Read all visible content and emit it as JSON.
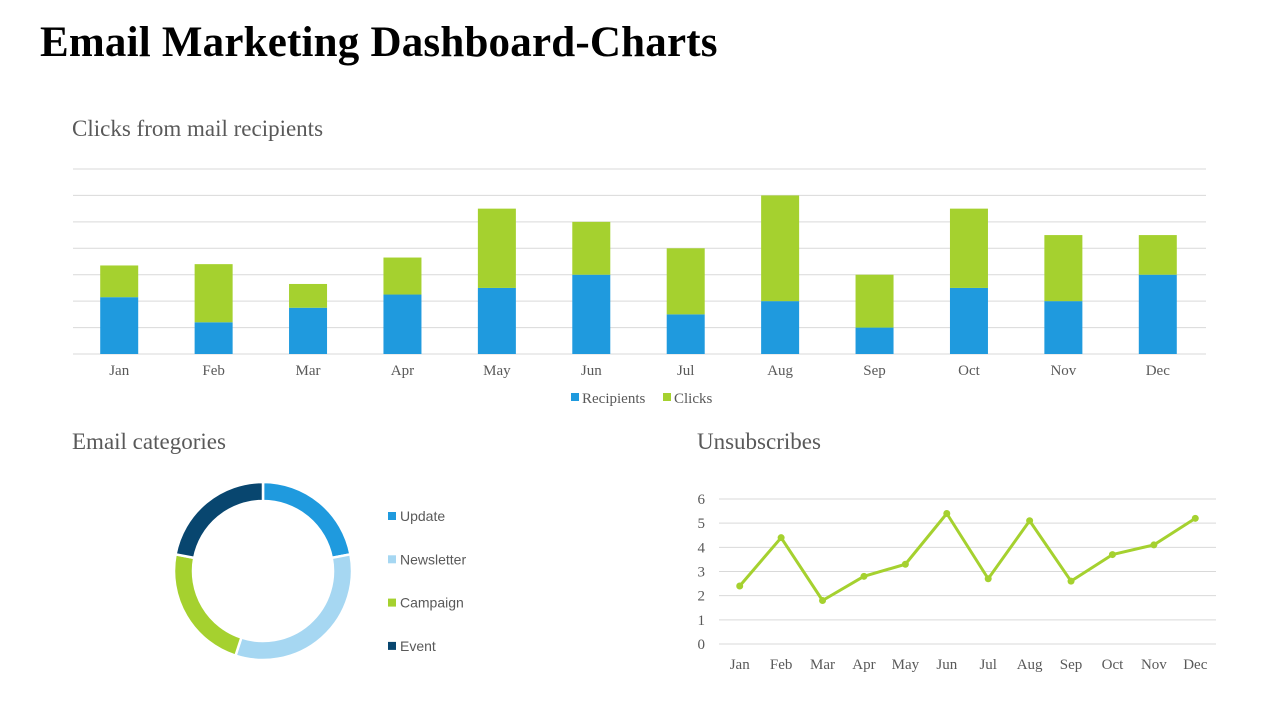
{
  "title": "Email Marketing Dashboard-Charts",
  "colors": {
    "blue": "#1f9ade",
    "green": "#a5d12f",
    "light_blue": "#a6d7f2",
    "navy": "#08466f",
    "grid": "#d9d9d9",
    "text": "#595959"
  },
  "chart_data": [
    {
      "id": "bar",
      "type": "bar",
      "stacked": true,
      "title": "Clicks from mail recipients",
      "categories": [
        "Jan",
        "Feb",
        "Mar",
        "Apr",
        "May",
        "Jun",
        "Jul",
        "Aug",
        "Sep",
        "Oct",
        "Nov",
        "Dec"
      ],
      "series": [
        {
          "name": "Recipients",
          "values": [
            4.3,
            2.4,
            3.5,
            4.5,
            5.0,
            6.0,
            3.0,
            4.0,
            2.0,
            5.0,
            4.0,
            6.0
          ]
        },
        {
          "name": "Clicks",
          "values": [
            2.4,
            4.4,
            1.8,
            2.8,
            6.0,
            4.0,
            5.0,
            8.0,
            4.0,
            6.0,
            5.0,
            3.0
          ]
        }
      ],
      "ylim": [
        0,
        14
      ],
      "grid": true,
      "legend": "bottom"
    },
    {
      "id": "donut",
      "type": "pie",
      "donut": true,
      "title": "Email categories",
      "labels": [
        "Update",
        "Newsletter",
        "Campaign",
        "Event"
      ],
      "values": [
        22,
        33,
        23,
        22
      ],
      "legend": "right"
    },
    {
      "id": "line",
      "type": "line",
      "title": "Unsubscribes",
      "categories": [
        "Jan",
        "Feb",
        "Mar",
        "Apr",
        "May",
        "Jun",
        "Jul",
        "Aug",
        "Sep",
        "Oct",
        "Nov",
        "Dec"
      ],
      "values": [
        2.4,
        4.4,
        1.8,
        2.8,
        3.3,
        5.4,
        2.7,
        5.1,
        2.6,
        3.7,
        4.1,
        5.2
      ],
      "ylim": [
        0,
        6
      ],
      "yticks": [
        0,
        1,
        2,
        3,
        4,
        5,
        6
      ],
      "grid": true
    }
  ]
}
